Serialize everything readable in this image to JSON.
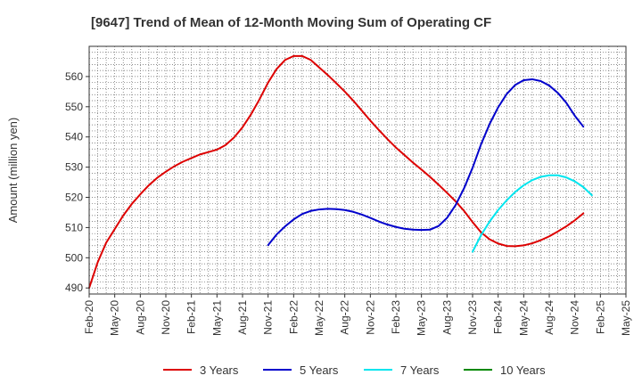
{
  "chart_data": {
    "type": "line",
    "title": "[9647]  Trend of Mean of 12-Month Moving Sum of Operating CF",
    "xlabel": "",
    "ylabel": "Amount (million yen)",
    "ylim": [
      488,
      570
    ],
    "yticks": [
      490,
      500,
      510,
      520,
      530,
      540,
      550,
      560
    ],
    "grid": true,
    "legend_position": "bottom",
    "x_start": "Feb-20",
    "x_ticks": [
      "Feb-20",
      "May-20",
      "Aug-20",
      "Nov-20",
      "Feb-21",
      "May-21",
      "Aug-21",
      "Nov-21",
      "Feb-22",
      "May-22",
      "Aug-22",
      "Nov-22",
      "Feb-23",
      "May-23",
      "Aug-23",
      "Nov-23",
      "Feb-24",
      "May-24",
      "Aug-24",
      "Nov-24",
      "Feb-25",
      "May-25"
    ],
    "series": [
      {
        "name": "3 Years",
        "color": "#dd0000",
        "start_index": 0,
        "values": [
          490,
          498.5,
          505,
          509.5,
          514,
          517.8,
          521,
          524,
          526.5,
          528.5,
          530.3,
          531.8,
          533,
          534.2,
          535,
          535.8,
          537.3,
          539.8,
          543.2,
          547.5,
          552.5,
          558,
          562.5,
          565.5,
          566.8,
          566.8,
          565.5,
          563,
          560.5,
          557.8,
          555,
          552,
          548.7,
          545.4,
          542.3,
          539.3,
          536.5,
          534,
          531.5,
          529.2,
          526.8,
          524.2,
          521.5,
          518.7,
          515.5,
          511.8,
          508.4,
          506.1,
          504.7,
          503.9,
          503.8,
          504.1,
          504.8,
          505.8,
          507.1,
          508.7,
          510.4,
          512.4,
          514.7
        ]
      },
      {
        "name": "5 Years",
        "color": "#0000cc",
        "start_index": 21,
        "values": [
          504.2,
          507.7,
          510.4,
          512.7,
          514.5,
          515.5,
          516,
          516.2,
          516.1,
          515.8,
          515.2,
          514.3,
          513.2,
          512,
          511,
          510.2,
          509.6,
          509.3,
          509.2,
          509.3,
          510.5,
          513.2,
          517.4,
          523,
          529.8,
          537.6,
          544.3,
          549.8,
          554.2,
          557.2,
          558.8,
          559.1,
          558.5,
          557,
          554.6,
          551.3,
          547,
          543.4
        ]
      },
      {
        "name": "7 Years",
        "color": "#00e5ee",
        "start_index": 45,
        "values": [
          502,
          507.5,
          512,
          515.8,
          519,
          521.8,
          524,
          525.7,
          526.8,
          527.3,
          527.3,
          526.6,
          525.3,
          523.4,
          520.7
        ]
      },
      {
        "name": "10 Years",
        "color": "#008800",
        "start_index": 0,
        "values": []
      }
    ]
  }
}
